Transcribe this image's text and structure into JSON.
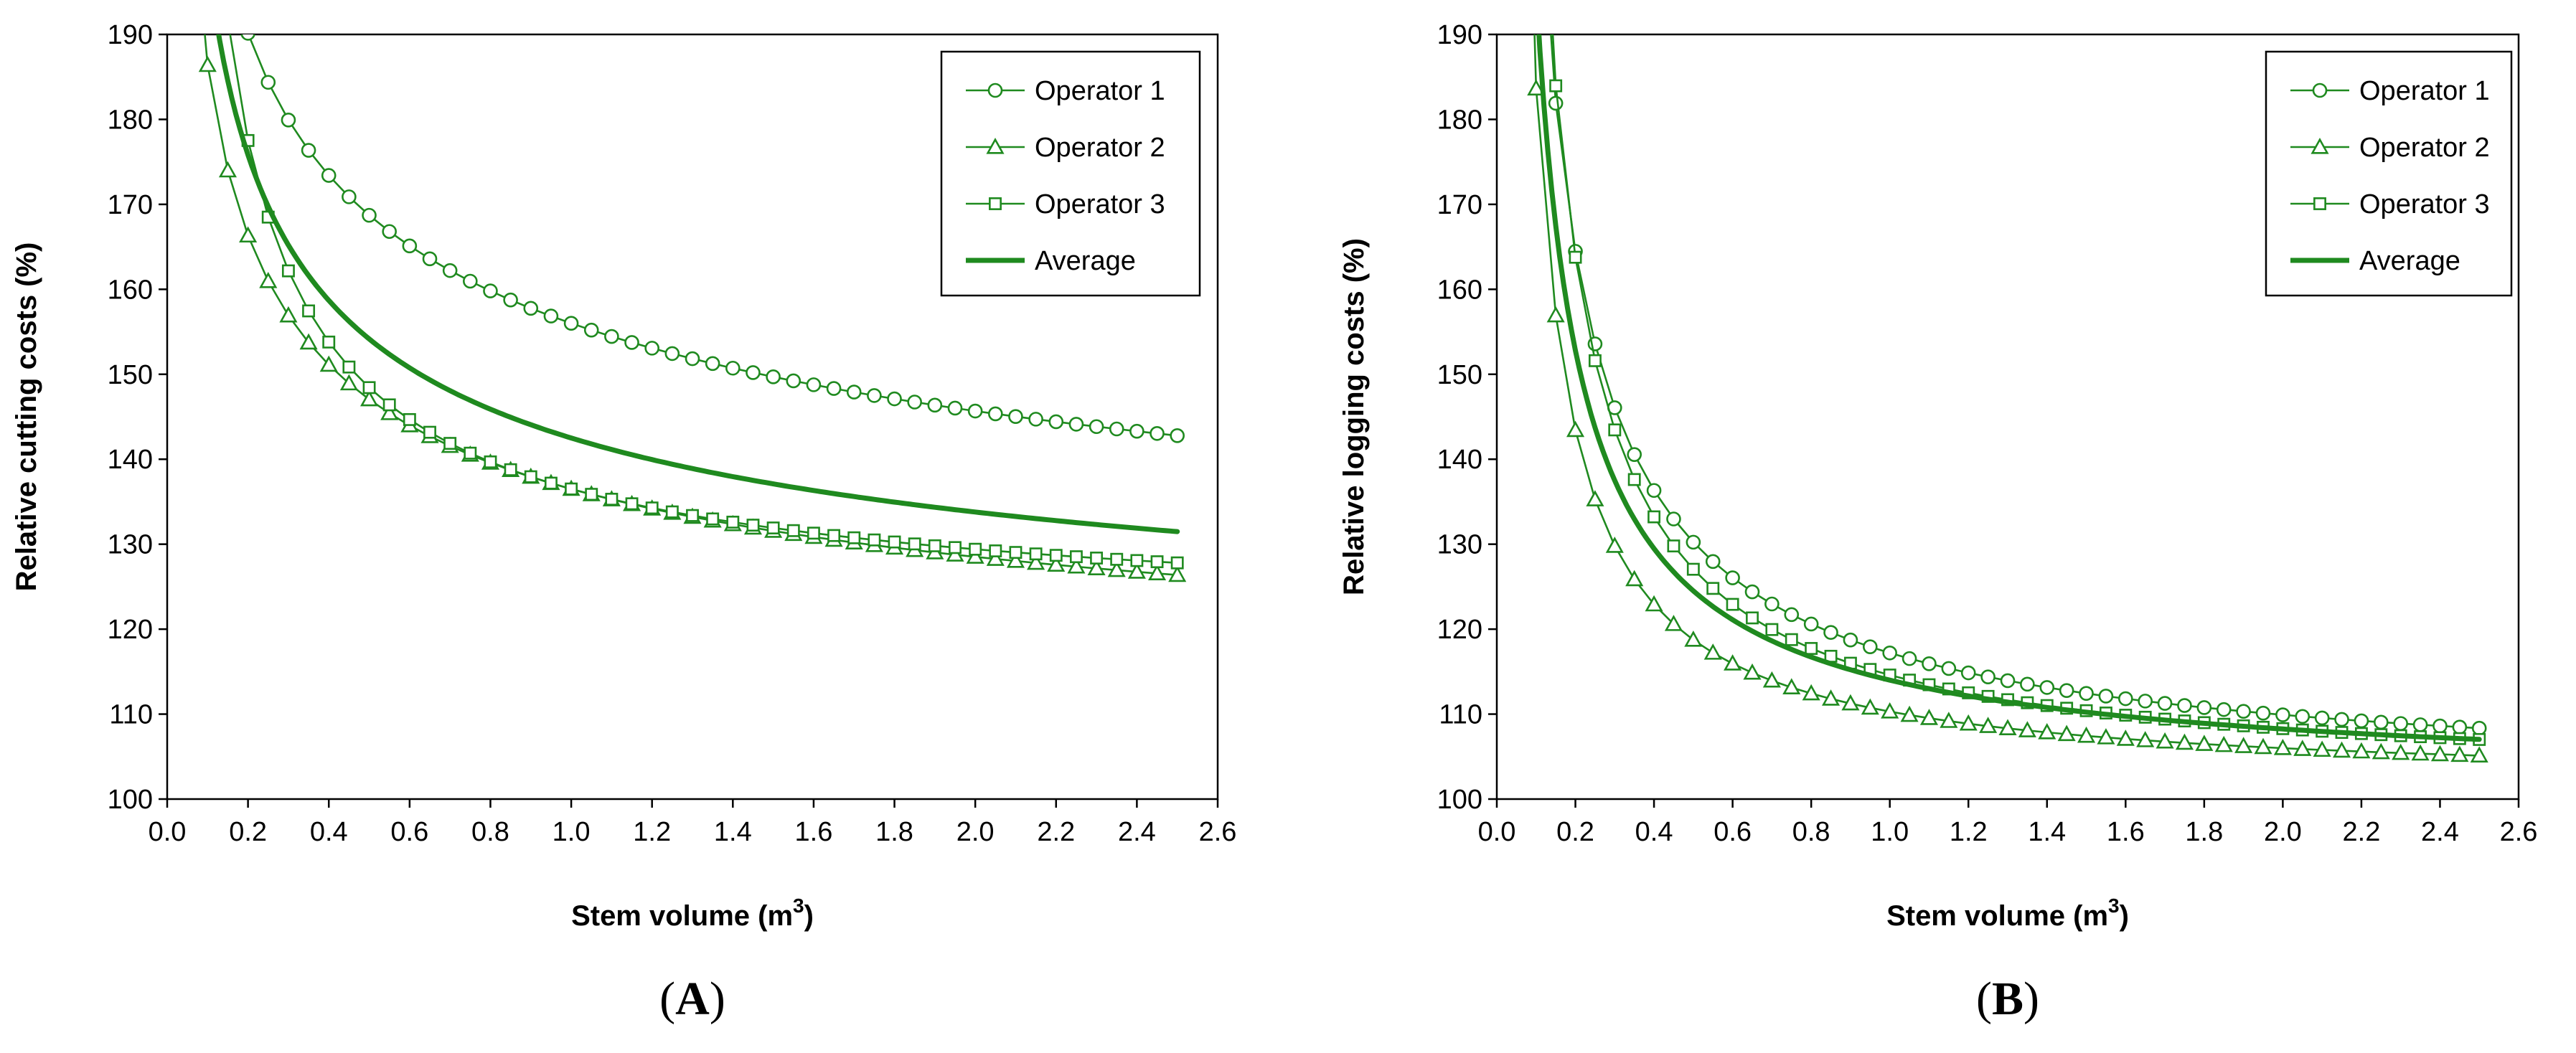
{
  "colors": {
    "series": "#1f8a1f",
    "axis": "#000000",
    "background": "#ffffff"
  },
  "chart_data": [
    {
      "panel": "A",
      "panel_label": {
        "open": "(",
        "letter": "A",
        "close": ")"
      },
      "type": "line",
      "title": "",
      "xlabel": "Stem volume (m",
      "xlabel_sup": "3",
      "xlabel_close": ")",
      "ylabel": "Relative cutting costs (%)",
      "xlim": [
        0.0,
        2.6
      ],
      "ylim": [
        100,
        190
      ],
      "xticks": [
        "0.0",
        "0.2",
        "0.4",
        "0.6",
        "0.8",
        "1.0",
        "1.2",
        "1.4",
        "1.6",
        "1.8",
        "2.0",
        "2.2",
        "2.4",
        "2.6"
      ],
      "yticks": [
        "100",
        "110",
        "120",
        "130",
        "140",
        "150",
        "160",
        "170",
        "180",
        "190"
      ],
      "legend_position": "top-right",
      "model": {
        "form": "y = a + b * x^(-c)"
      },
      "series": [
        {
          "name": "Operator 1",
          "marker": "circle",
          "a": 101.0,
          "b": 55.0,
          "c": 0.3,
          "x_start": 0.05,
          "x_end": 2.5,
          "step": 0.05
        },
        {
          "name": "Operator 2",
          "marker": "triangle",
          "a": 103.5,
          "b": 33.0,
          "c": 0.4,
          "x_start": 0.05,
          "x_end": 2.5,
          "step": 0.05
        },
        {
          "name": "Operator 3",
          "marker": "square",
          "a": 119.0,
          "b": 17.5,
          "c": 0.75,
          "x_start": 0.05,
          "x_end": 2.5,
          "step": 0.05
        },
        {
          "name": "Average",
          "marker": "none",
          "a": 108.0,
          "b": 34.5,
          "c": 0.42,
          "x_start": 0.05,
          "x_end": 2.5,
          "step": 0.01
        }
      ]
    },
    {
      "panel": "B",
      "panel_label": {
        "open": "(",
        "letter": "B",
        "close": ")"
      },
      "type": "line",
      "title": "",
      "xlabel": "Stem volume (m",
      "xlabel_sup": "3",
      "xlabel_close": ")",
      "ylabel": "Relative logging costs (%)",
      "xlim": [
        0.0,
        2.6
      ],
      "ylim": [
        100,
        190
      ],
      "xticks": [
        "0.0",
        "0.2",
        "0.4",
        "0.6",
        "0.8",
        "1.0",
        "1.2",
        "1.4",
        "1.6",
        "1.8",
        "2.0",
        "2.2",
        "2.4",
        "2.6"
      ],
      "yticks": [
        "100",
        "110",
        "120",
        "130",
        "140",
        "150",
        "160",
        "170",
        "180",
        "190"
      ],
      "legend_position": "top-right",
      "model": {
        "form": "y = a + b * x^(-c)"
      },
      "series": [
        {
          "name": "Operator 1",
          "marker": "circle",
          "a": 100.7,
          "b": 16.5,
          "c": 0.84,
          "x_start": 0.05,
          "x_end": 2.5,
          "step": 0.05
        },
        {
          "name": "Operator 2",
          "marker": "triangle",
          "a": 101.5,
          "b": 8.8,
          "c": 0.97,
          "x_start": 0.05,
          "x_end": 2.5,
          "step": 0.05
        },
        {
          "name": "Operator 3",
          "marker": "square",
          "a": 101.8,
          "b": 12.8,
          "c": 0.98,
          "x_start": 0.05,
          "x_end": 2.5,
          "step": 0.05
        },
        {
          "name": "Average",
          "marker": "none",
          "a": 101.3,
          "b": 12.7,
          "c": 0.87,
          "x_start": 0.05,
          "x_end": 2.5,
          "step": 0.01
        }
      ]
    }
  ]
}
